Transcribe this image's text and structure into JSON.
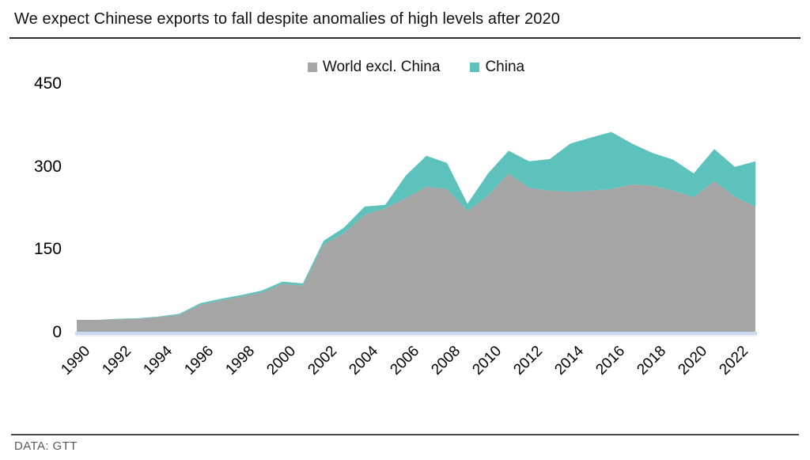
{
  "title": "We expect Chinese exports to fall despite anomalies of high levels after 2020",
  "footer": {
    "source": "DATA: GTT"
  },
  "chart_data": {
    "type": "area",
    "stacked": true,
    "title": "We expect Chinese exports to fall despite anomalies of high levels after 2020",
    "xlabel": "",
    "ylabel": "",
    "grid": false,
    "legend_position": "top-center",
    "ylim": [
      0,
      450
    ],
    "yticks": [
      0,
      150,
      300,
      450
    ],
    "xticks": [
      1990,
      1992,
      1994,
      1996,
      1998,
      2000,
      2002,
      2004,
      2006,
      2008,
      2010,
      2012,
      2014,
      2016,
      2018,
      2020,
      2022
    ],
    "x": [
      1990,
      1991,
      1992,
      1993,
      1994,
      1995,
      1996,
      1997,
      1998,
      1999,
      2000,
      2001,
      2002,
      2003,
      2004,
      2005,
      2006,
      2007,
      2008,
      2009,
      2010,
      2011,
      2012,
      2013,
      2014,
      2015,
      2016,
      2017,
      2018,
      2019,
      2020,
      2021,
      2022,
      2023
    ],
    "series": [
      {
        "name": "World excl. China",
        "color": "#a5a5a5",
        "values": [
          23,
          23,
          24,
          25,
          28,
          32,
          50,
          58,
          65,
          72,
          88,
          85,
          159,
          180,
          213,
          225,
          243,
          264,
          260,
          220,
          248,
          288,
          262,
          257,
          255,
          257,
          260,
          268,
          266,
          257,
          245,
          274,
          246,
          228
        ]
      },
      {
        "name": "China",
        "color": "#5cc2bb",
        "values": [
          0,
          0,
          1,
          1,
          1,
          2,
          3,
          3,
          3,
          4,
          4,
          4,
          7,
          10,
          15,
          6,
          41,
          56,
          47,
          13,
          40,
          41,
          48,
          57,
          87,
          96,
          103,
          74,
          59,
          56,
          43,
          58,
          54,
          82
        ]
      }
    ],
    "axis_baseline_color": "#c9d9f0",
    "source": "DATA: GTT"
  }
}
